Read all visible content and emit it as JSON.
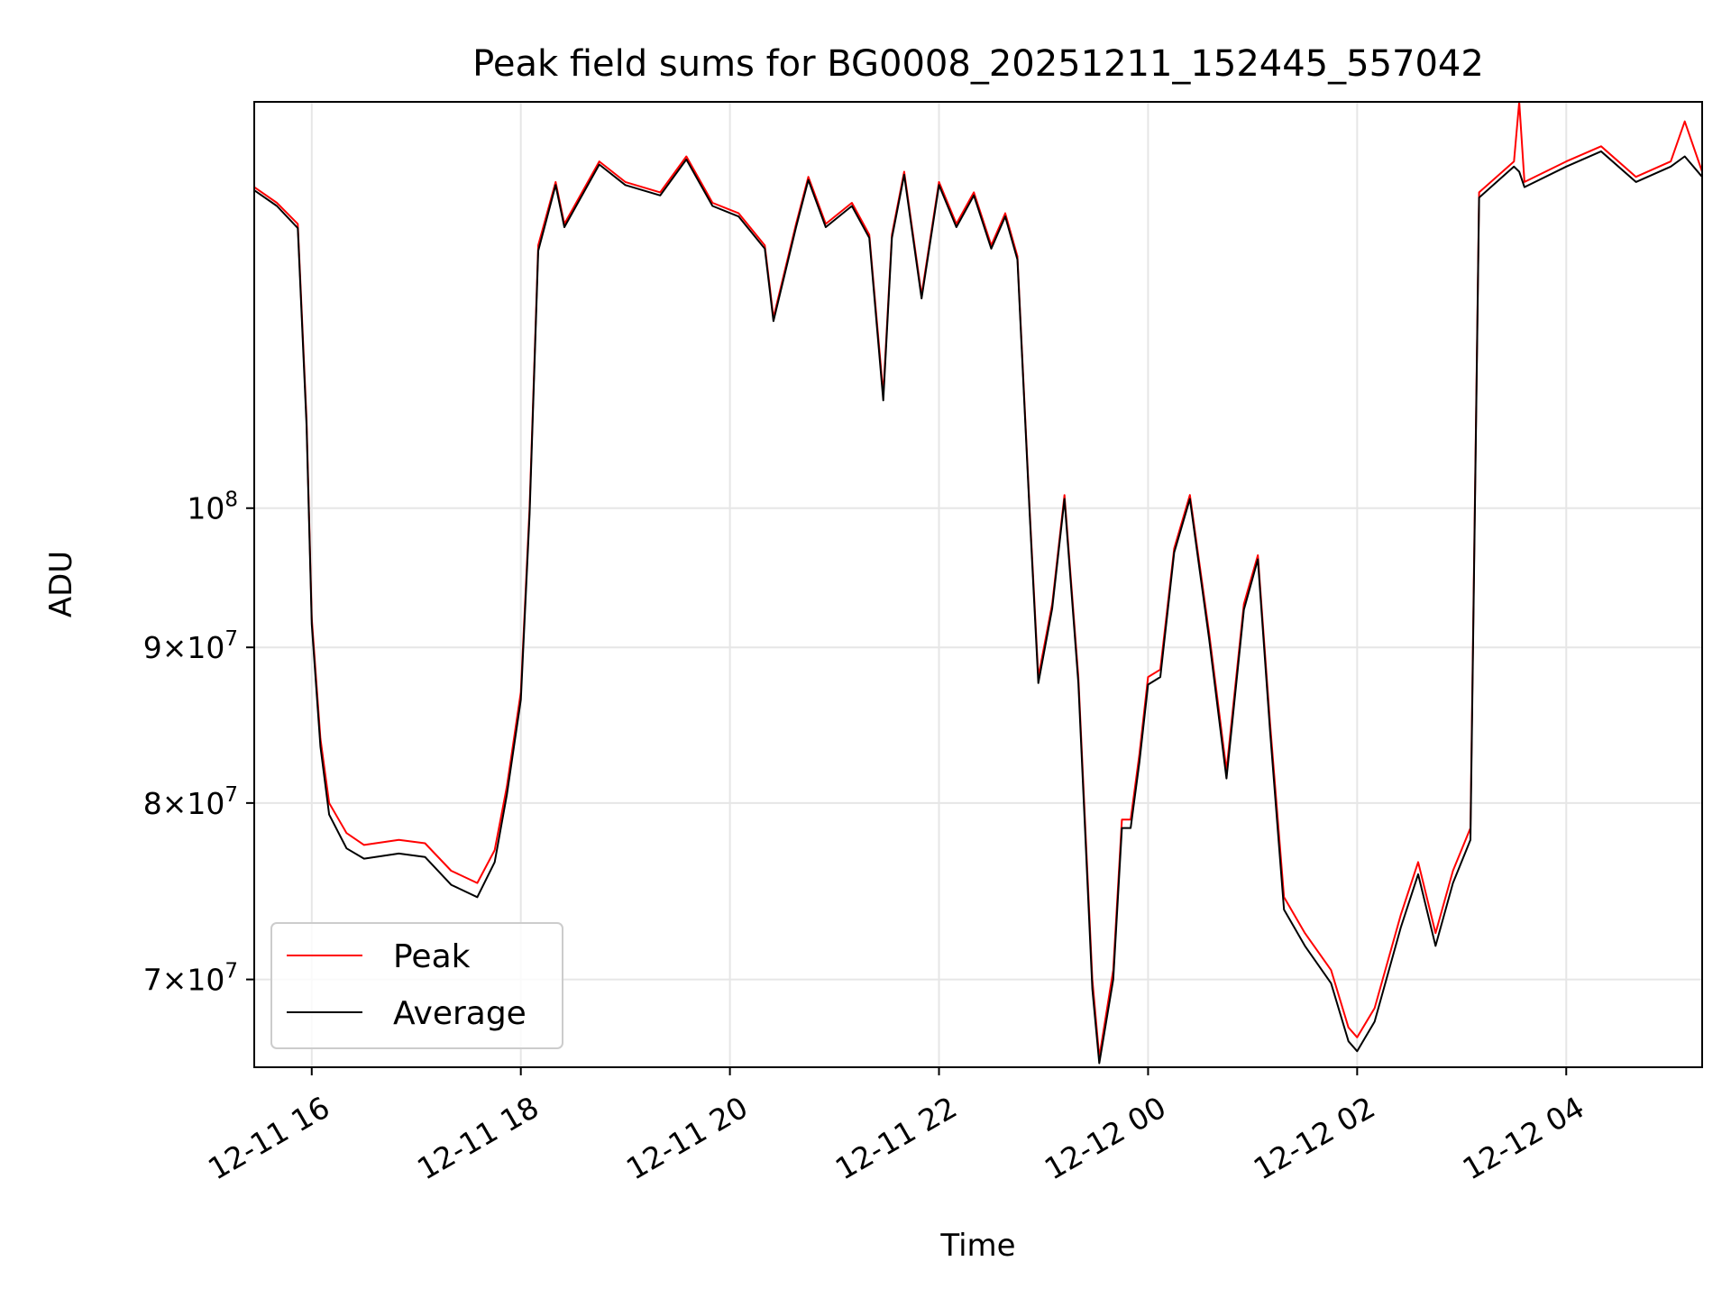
{
  "chart_data": {
    "type": "line",
    "title": "Peak field sums for BG0008_20251211_152445_557042",
    "xlabel": "Time",
    "ylabel": "ADU",
    "yscale": "log",
    "xlim": [
      "2025-12-11 15:27",
      "2025-12-12 05:18"
    ],
    "ylim": [
      65500000,
      136000000
    ],
    "grid": true,
    "legend_position": "lower-left",
    "x_ticks": [
      {
        "value": "2025-12-11 16:00",
        "label": "12-11 16"
      },
      {
        "value": "2025-12-11 18:00",
        "label": "12-11 18"
      },
      {
        "value": "2025-12-11 20:00",
        "label": "12-11 20"
      },
      {
        "value": "2025-12-11 22:00",
        "label": "12-11 22"
      },
      {
        "value": "2025-12-12 00:00",
        "label": "12-12 00"
      },
      {
        "value": "2025-12-12 02:00",
        "label": "12-12 02"
      },
      {
        "value": "2025-12-12 04:00",
        "label": "12-12 04"
      }
    ],
    "y_ticks": [
      {
        "value": 70000000,
        "mant": "7",
        "exp": "7"
      },
      {
        "value": 80000000,
        "mant": "8",
        "exp": "7"
      },
      {
        "value": 90000000,
        "mant": "9",
        "exp": "7"
      },
      {
        "value": 100000000,
        "mant": "",
        "exp": "8"
      }
    ],
    "series": [
      {
        "name": "Peak",
        "color": "#ff0000",
        "points": [
          [
            "2025-12-11 15:27",
            127500000
          ],
          [
            "2025-12-11 15:40",
            126000000
          ],
          [
            "2025-12-11 15:52",
            124000000
          ],
          [
            "2025-12-11 15:57",
            107000000
          ],
          [
            "2025-12-11 16:00",
            92000000
          ],
          [
            "2025-12-11 16:05",
            84000000
          ],
          [
            "2025-12-11 16:10",
            80000000
          ],
          [
            "2025-12-11 16:20",
            78200000
          ],
          [
            "2025-12-11 16:30",
            77500000
          ],
          [
            "2025-12-11 16:50",
            77800000
          ],
          [
            "2025-12-11 17:05",
            77600000
          ],
          [
            "2025-12-11 17:20",
            76000000
          ],
          [
            "2025-12-11 17:35",
            75300000
          ],
          [
            "2025-12-11 17:45",
            77200000
          ],
          [
            "2025-12-11 17:52",
            81000000
          ],
          [
            "2025-12-11 18:00",
            87000000
          ],
          [
            "2025-12-11 18:05",
            100000000
          ],
          [
            "2025-12-11 18:10",
            122000000
          ],
          [
            "2025-12-11 18:20",
            128000000
          ],
          [
            "2025-12-11 18:25",
            124000000
          ],
          [
            "2025-12-11 18:45",
            130000000
          ],
          [
            "2025-12-11 19:00",
            128000000
          ],
          [
            "2025-12-11 19:20",
            127000000
          ],
          [
            "2025-12-11 19:35",
            130500000
          ],
          [
            "2025-12-11 19:50",
            126000000
          ],
          [
            "2025-12-11 20:05",
            125000000
          ],
          [
            "2025-12-11 20:20",
            122000000
          ],
          [
            "2025-12-11 20:25",
            115500000
          ],
          [
            "2025-12-11 20:38",
            124000000
          ],
          [
            "2025-12-11 20:45",
            128500000
          ],
          [
            "2025-12-11 20:55",
            124000000
          ],
          [
            "2025-12-11 21:10",
            126000000
          ],
          [
            "2025-12-11 21:20",
            123000000
          ],
          [
            "2025-12-11 21:28",
            109000000
          ],
          [
            "2025-12-11 21:33",
            123000000
          ],
          [
            "2025-12-11 21:40",
            129000000
          ],
          [
            "2025-12-11 21:50",
            117500000
          ],
          [
            "2025-12-11 22:00",
            128000000
          ],
          [
            "2025-12-11 22:10",
            124000000
          ],
          [
            "2025-12-11 22:20",
            127000000
          ],
          [
            "2025-12-11 22:30",
            122000000
          ],
          [
            "2025-12-11 22:38",
            125000000
          ],
          [
            "2025-12-11 22:45",
            121000000
          ],
          [
            "2025-12-11 22:52",
            100000000
          ],
          [
            "2025-12-11 22:57",
            88000000
          ],
          [
            "2025-12-11 23:05",
            93000000
          ],
          [
            "2025-12-11 23:12",
            101000000
          ],
          [
            "2025-12-11 23:20",
            88000000
          ],
          [
            "2025-12-11 23:28",
            70000000
          ],
          [
            "2025-12-11 23:32",
            66000000
          ],
          [
            "2025-12-11 23:40",
            70500000
          ],
          [
            "2025-12-11 23:45",
            79000000
          ],
          [
            "2025-12-11 23:50",
            79000000
          ],
          [
            "2025-12-11 23:55",
            83000000
          ],
          [
            "2025-12-12 00:00",
            88000000
          ],
          [
            "2025-12-12 00:07",
            88500000
          ],
          [
            "2025-12-12 00:15",
            97000000
          ],
          [
            "2025-12-12 00:24",
            101000000
          ],
          [
            "2025-12-12 00:35",
            91000000
          ],
          [
            "2025-12-12 00:45",
            82000000
          ],
          [
            "2025-12-12 00:55",
            93000000
          ],
          [
            "2025-12-12 01:03",
            96500000
          ],
          [
            "2025-12-12 01:10",
            85000000
          ],
          [
            "2025-12-12 01:18",
            74500000
          ],
          [
            "2025-12-12 01:30",
            72500000
          ],
          [
            "2025-12-12 01:45",
            70500000
          ],
          [
            "2025-12-12 01:55",
            67500000
          ],
          [
            "2025-12-12 02:00",
            67000000
          ],
          [
            "2025-12-12 02:10",
            68500000
          ],
          [
            "2025-12-12 02:25",
            73500000
          ],
          [
            "2025-12-12 02:35",
            76500000
          ],
          [
            "2025-12-12 02:45",
            72500000
          ],
          [
            "2025-12-12 02:55",
            76000000
          ],
          [
            "2025-12-12 03:05",
            78500000
          ],
          [
            "2025-12-12 03:10",
            127000000
          ],
          [
            "2025-12-12 03:30",
            130000000
          ],
          [
            "2025-12-12 03:33",
            136000000
          ],
          [
            "2025-12-12 03:36",
            128000000
          ],
          [
            "2025-12-12 04:00",
            130000000
          ],
          [
            "2025-12-12 04:20",
            131500000
          ],
          [
            "2025-12-12 04:40",
            128500000
          ],
          [
            "2025-12-12 05:00",
            130000000
          ],
          [
            "2025-12-12 05:08",
            134000000
          ],
          [
            "2025-12-12 05:18",
            129000000
          ]
        ]
      },
      {
        "name": "Average",
        "color": "#000000",
        "points": [
          [
            "2025-12-11 15:27",
            127200000
          ],
          [
            "2025-12-11 15:40",
            125700000
          ],
          [
            "2025-12-11 15:52",
            123600000
          ],
          [
            "2025-12-11 15:57",
            106500000
          ],
          [
            "2025-12-11 16:00",
            91600000
          ],
          [
            "2025-12-11 16:05",
            83500000
          ],
          [
            "2025-12-11 16:10",
            79300000
          ],
          [
            "2025-12-11 16:20",
            77300000
          ],
          [
            "2025-12-11 16:30",
            76700000
          ],
          [
            "2025-12-11 16:50",
            77000000
          ],
          [
            "2025-12-11 17:05",
            76800000
          ],
          [
            "2025-12-11 17:20",
            75200000
          ],
          [
            "2025-12-11 17:35",
            74500000
          ],
          [
            "2025-12-11 17:45",
            76500000
          ],
          [
            "2025-12-11 17:52",
            80500000
          ],
          [
            "2025-12-11 18:00",
            86500000
          ],
          [
            "2025-12-11 18:05",
            99500000
          ],
          [
            "2025-12-11 18:10",
            121500000
          ],
          [
            "2025-12-11 18:20",
            127700000
          ],
          [
            "2025-12-11 18:25",
            123700000
          ],
          [
            "2025-12-11 18:45",
            129700000
          ],
          [
            "2025-12-11 19:00",
            127700000
          ],
          [
            "2025-12-11 19:20",
            126700000
          ],
          [
            "2025-12-11 19:35",
            130200000
          ],
          [
            "2025-12-11 19:50",
            125700000
          ],
          [
            "2025-12-11 20:05",
            124700000
          ],
          [
            "2025-12-11 20:20",
            121700000
          ],
          [
            "2025-12-11 20:25",
            115200000
          ],
          [
            "2025-12-11 20:38",
            123700000
          ],
          [
            "2025-12-11 20:45",
            128200000
          ],
          [
            "2025-12-11 20:55",
            123700000
          ],
          [
            "2025-12-11 21:10",
            125700000
          ],
          [
            "2025-12-11 21:20",
            122700000
          ],
          [
            "2025-12-11 21:28",
            108500000
          ],
          [
            "2025-12-11 21:33",
            122700000
          ],
          [
            "2025-12-11 21:40",
            128700000
          ],
          [
            "2025-12-11 21:50",
            117200000
          ],
          [
            "2025-12-11 22:00",
            127700000
          ],
          [
            "2025-12-11 22:10",
            123700000
          ],
          [
            "2025-12-11 22:20",
            126700000
          ],
          [
            "2025-12-11 22:30",
            121700000
          ],
          [
            "2025-12-11 22:38",
            124700000
          ],
          [
            "2025-12-11 22:45",
            120700000
          ],
          [
            "2025-12-11 22:52",
            99700000
          ],
          [
            "2025-12-11 22:57",
            87600000
          ],
          [
            "2025-12-11 23:05",
            92700000
          ],
          [
            "2025-12-11 23:12",
            100700000
          ],
          [
            "2025-12-11 23:20",
            87600000
          ],
          [
            "2025-12-11 23:28",
            69500000
          ],
          [
            "2025-12-11 23:32",
            65700000
          ],
          [
            "2025-12-11 23:40",
            70000000
          ],
          [
            "2025-12-11 23:45",
            78500000
          ],
          [
            "2025-12-11 23:50",
            78500000
          ],
          [
            "2025-12-11 23:55",
            82500000
          ],
          [
            "2025-12-12 00:00",
            87500000
          ],
          [
            "2025-12-12 00:07",
            88000000
          ],
          [
            "2025-12-12 00:15",
            96700000
          ],
          [
            "2025-12-12 00:24",
            100700000
          ],
          [
            "2025-12-12 00:35",
            90600000
          ],
          [
            "2025-12-12 00:45",
            81500000
          ],
          [
            "2025-12-12 00:55",
            92600000
          ],
          [
            "2025-12-12 01:03",
            96200000
          ],
          [
            "2025-12-12 01:10",
            84500000
          ],
          [
            "2025-12-12 01:18",
            73800000
          ],
          [
            "2025-12-12 01:30",
            71800000
          ],
          [
            "2025-12-12 01:45",
            69800000
          ],
          [
            "2025-12-12 01:55",
            66800000
          ],
          [
            "2025-12-12 02:00",
            66300000
          ],
          [
            "2025-12-12 02:10",
            67800000
          ],
          [
            "2025-12-12 02:25",
            72800000
          ],
          [
            "2025-12-12 02:35",
            75800000
          ],
          [
            "2025-12-12 02:45",
            71800000
          ],
          [
            "2025-12-12 02:55",
            75300000
          ],
          [
            "2025-12-12 03:05",
            77800000
          ],
          [
            "2025-12-12 03:10",
            126500000
          ],
          [
            "2025-12-12 03:30",
            129500000
          ],
          [
            "2025-12-12 03:33",
            129000000
          ],
          [
            "2025-12-12 03:36",
            127500000
          ],
          [
            "2025-12-12 04:00",
            129500000
          ],
          [
            "2025-12-12 04:20",
            131000000
          ],
          [
            "2025-12-12 04:40",
            128000000
          ],
          [
            "2025-12-12 05:00",
            129500000
          ],
          [
            "2025-12-12 05:08",
            130500000
          ],
          [
            "2025-12-12 05:18",
            128500000
          ]
        ]
      }
    ]
  }
}
